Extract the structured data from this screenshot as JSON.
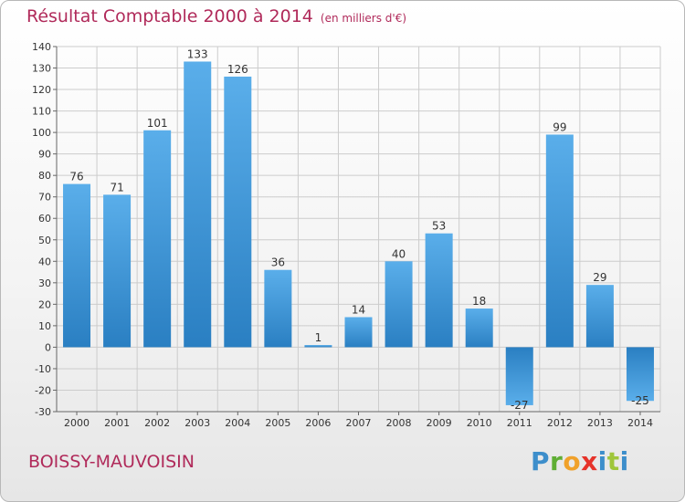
{
  "title": "Résultat Comptable 2000 à 2014",
  "subtitle": "(en milliers d'€)",
  "commune": "BOISSY-MAUVOISIN",
  "logo_text": "Proxiti",
  "colors": {
    "title": "#b02a5a",
    "bar_light": "#5aaeea",
    "bar_dark": "#2a7fc2",
    "grid": "#cccccc"
  },
  "chart_data": {
    "type": "bar",
    "categories": [
      "2000",
      "2001",
      "2002",
      "2003",
      "2004",
      "2005",
      "2006",
      "2007",
      "2008",
      "2009",
      "2010",
      "2011",
      "2012",
      "2013",
      "2014"
    ],
    "values": [
      76,
      71,
      101,
      133,
      126,
      36,
      1,
      14,
      40,
      53,
      18,
      -27,
      99,
      29,
      -25
    ],
    "ylim": [
      -30,
      140
    ],
    "yticks": [
      -30,
      -20,
      -10,
      0,
      10,
      20,
      30,
      40,
      50,
      60,
      70,
      80,
      90,
      100,
      110,
      120,
      130,
      140
    ],
    "grid": true,
    "legend": "none"
  }
}
